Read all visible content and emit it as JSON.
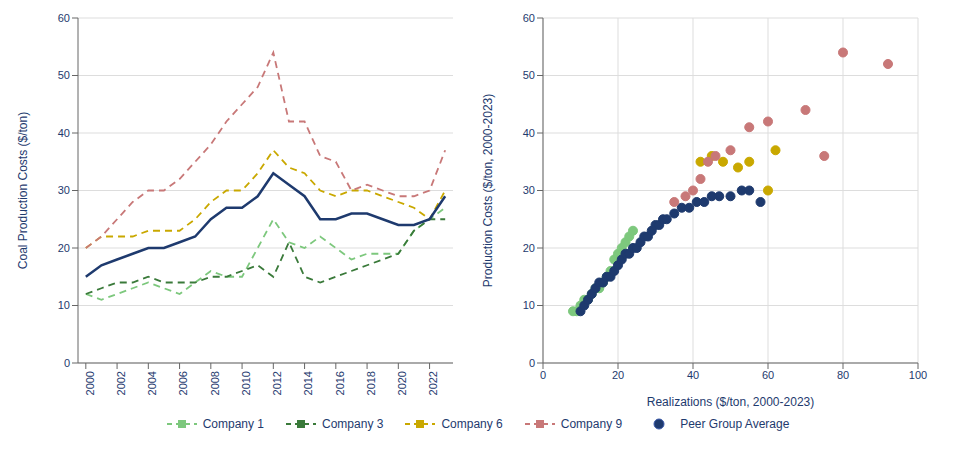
{
  "chart_data": [
    {
      "type": "line",
      "x": [
        2000,
        2001,
        2002,
        2003,
        2004,
        2005,
        2006,
        2007,
        2008,
        2009,
        2010,
        2011,
        2012,
        2013,
        2014,
        2015,
        2016,
        2017,
        2018,
        2019,
        2020,
        2021,
        2022,
        2023
      ],
      "series": [
        {
          "name": "Company 1",
          "color": "#7dc87d",
          "line_style": "dashed",
          "values": [
            12,
            11,
            12,
            13,
            14,
            13,
            12,
            14,
            16,
            15,
            15,
            20,
            25,
            21,
            20,
            22,
            20,
            18,
            19,
            19,
            19,
            23,
            25,
            27
          ]
        },
        {
          "name": "Company 3",
          "color": "#3a7a3a",
          "line_style": "dashed",
          "values": [
            12,
            13,
            14,
            14,
            15,
            14,
            14,
            14,
            15,
            15,
            16,
            17,
            15,
            21,
            15,
            14,
            15,
            16,
            17,
            18,
            19,
            23,
            25,
            25
          ]
        },
        {
          "name": "Company 6",
          "color": "#c9a800",
          "line_style": "dashed",
          "values": [
            20,
            22,
            22,
            22,
            23,
            23,
            23,
            25,
            28,
            30,
            30,
            33,
            37,
            34,
            33,
            30,
            29,
            30,
            30,
            29,
            28,
            27,
            25,
            30
          ]
        },
        {
          "name": "Company 9",
          "color": "#c87878",
          "line_style": "dashed",
          "values": [
            20,
            22,
            25,
            28,
            30,
            30,
            32,
            35,
            38,
            42,
            45,
            48,
            54,
            42,
            42,
            36,
            35,
            30,
            31,
            30,
            29,
            29,
            30,
            37
          ]
        },
        {
          "name": "Peer Group Average",
          "color": "#1e3a6e",
          "line_style": "solid",
          "values": [
            15,
            17,
            18,
            19,
            20,
            20,
            21,
            22,
            25,
            27,
            27,
            29,
            33,
            31,
            29,
            25,
            25,
            26,
            26,
            25,
            24,
            24,
            25,
            29
          ]
        }
      ],
      "y_label": "Coal Production Costs ($/ton)",
      "xlim": [
        1999.5,
        2023.5
      ],
      "xticks": [
        2000,
        2002,
        2004,
        2006,
        2008,
        2010,
        2012,
        2014,
        2016,
        2018,
        2020,
        2022
      ],
      "ylim": [
        0,
        60
      ],
      "yticks": [
        0,
        10,
        20,
        30,
        40,
        50,
        60
      ],
      "grid": "y",
      "legend": "bottom"
    },
    {
      "type": "scatter",
      "series": [
        {
          "name": "Company 1",
          "color": "#7dc87d",
          "x": [
            8,
            9,
            10,
            11,
            12,
            13,
            14,
            15,
            16,
            17,
            18,
            19,
            20,
            21,
            22,
            23,
            24
          ],
          "values": [
            9,
            9,
            10,
            11,
            11,
            12,
            13,
            13,
            14,
            15,
            16,
            18,
            19,
            20,
            21,
            22,
            23
          ]
        },
        {
          "name": "Peer Group Average",
          "color": "#1e3a6e",
          "x": [
            10,
            11,
            12,
            13,
            14,
            15,
            16,
            17,
            18,
            19,
            20,
            21,
            22,
            23,
            24,
            25,
            26,
            27,
            28,
            29,
            30,
            31,
            32,
            33,
            35,
            37,
            39,
            41,
            43,
            45,
            47,
            50,
            53,
            55,
            58
          ],
          "values": [
            9,
            10,
            11,
            12,
            13,
            14,
            14,
            15,
            15,
            16,
            17,
            18,
            19,
            19,
            20,
            20,
            21,
            22,
            22,
            23,
            24,
            24,
            25,
            25,
            26,
            27,
            27,
            28,
            28,
            29,
            29,
            29,
            30,
            30,
            28
          ]
        },
        {
          "name": "Company 6",
          "color": "#c9a800",
          "x": [
            42,
            45,
            48,
            52,
            55,
            60,
            62
          ],
          "values": [
            35,
            36,
            35,
            34,
            35,
            30,
            37
          ]
        },
        {
          "name": "Company 9",
          "color": "#c87878",
          "x": [
            35,
            38,
            40,
            42,
            44,
            46,
            50,
            55,
            60,
            70,
            75,
            80,
            92
          ],
          "values": [
            28,
            29,
            30,
            32,
            35,
            36,
            37,
            41,
            42,
            44,
            36,
            54,
            52
          ]
        }
      ],
      "x_label": "Realizations ($/ton, 2000-2023)",
      "y_label": "Production Costs ($/ton, 2000-2023)",
      "xlim": [
        0,
        100
      ],
      "xticks": [
        0,
        20,
        40,
        60,
        80,
        100
      ],
      "ylim": [
        0,
        60
      ],
      "yticks": [
        0,
        10,
        20,
        30,
        40,
        50,
        60
      ],
      "grid": true
    }
  ]
}
